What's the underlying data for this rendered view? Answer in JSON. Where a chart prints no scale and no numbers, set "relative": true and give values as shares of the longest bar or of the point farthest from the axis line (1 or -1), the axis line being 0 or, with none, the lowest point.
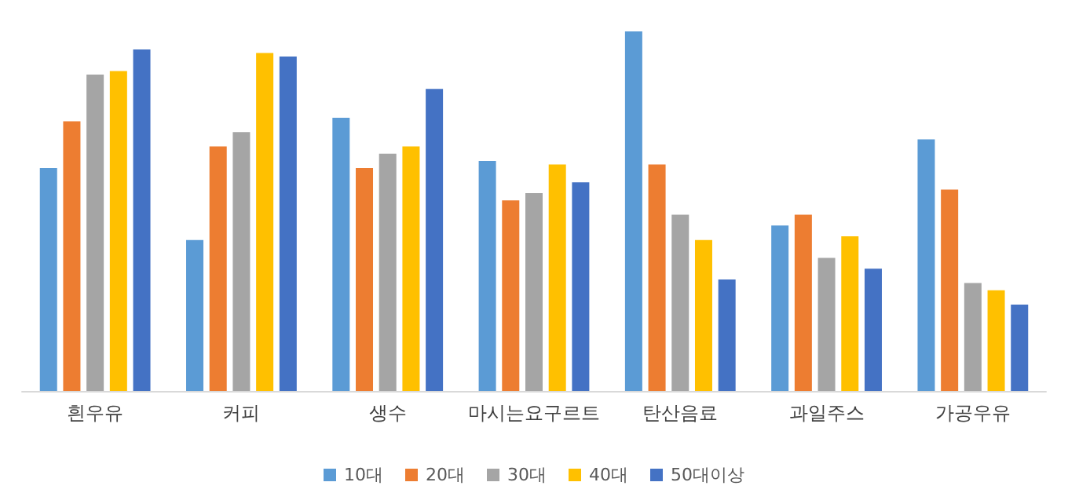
{
  "chart_data": {
    "type": "bar",
    "relative": true,
    "legend": "bottom",
    "categories": [
      "흰우유",
      "커피",
      "생수",
      "마시는요구르트",
      "탄산음료",
      "과일주스",
      "가공우유"
    ],
    "series": [
      {
        "name": "10대",
        "color": "#5b9bd5",
        "values": [
          0.62,
          0.42,
          0.76,
          0.64,
          1,
          0.46,
          0.7
        ]
      },
      {
        "name": "20대",
        "color": "#ed7d31",
        "values": [
          0.75,
          0.68,
          0.62,
          0.53,
          0.63,
          0.49,
          0.56
        ]
      },
      {
        "name": "30대",
        "color": "#a5a5a5",
        "values": [
          0.88,
          0.72,
          0.66,
          0.55,
          0.49,
          0.37,
          0.3
        ]
      },
      {
        "name": "40대",
        "color": "#ffc000",
        "values": [
          0.89,
          0.94,
          0.68,
          0.63,
          0.42,
          0.43,
          0.28
        ]
      },
      {
        "name": "50대이상",
        "color": "#4472c4",
        "values": [
          0.95,
          0.93,
          0.84,
          0.58,
          0.31,
          0.34,
          0.24
        ]
      }
    ]
  }
}
